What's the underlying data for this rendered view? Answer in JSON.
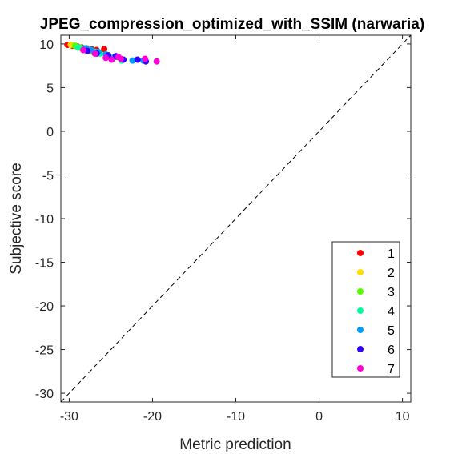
{
  "chart_data": {
    "type": "scatter",
    "title": "JPEG_compression_optimized_with_SSIM (narwaria)",
    "xlabel": "Metric prediction",
    "ylabel": "Subjective score",
    "xlim": [
      -31,
      11
    ],
    "ylim": [
      -31,
      11
    ],
    "xticks": [
      -30,
      -20,
      -10,
      0,
      10
    ],
    "yticks": [
      10,
      5,
      0,
      -5,
      -10,
      -15,
      -20,
      -25,
      -30
    ],
    "identity_line": true,
    "grid": false,
    "legend_position": "bottom-right",
    "series": [
      {
        "name": "1",
        "color": "#ff0000",
        "x": [
          -30.2,
          -29.6,
          -29.0,
          -28.5,
          -27.9,
          -27.3,
          -26.7,
          -25.8
        ],
        "y": [
          9.9,
          9.8,
          9.7,
          9.6,
          9.5,
          9.4,
          9.3,
          9.4
        ]
      },
      {
        "name": "2",
        "color": "#ffdd00",
        "x": [
          -29.8,
          -29.3,
          -28.9,
          -28.6,
          -28.1
        ],
        "y": [
          9.9,
          9.8,
          9.6,
          9.5,
          9.3
        ]
      },
      {
        "name": "3",
        "color": "#55ff00",
        "x": [
          -29.3,
          -28.7,
          -28.2,
          -27.7,
          -27.2
        ],
        "y": [
          9.8,
          9.6,
          9.5,
          9.3,
          9.1
        ]
      },
      {
        "name": "4",
        "color": "#00ff99",
        "x": [
          -28.9,
          -28.2,
          -27.5,
          -26.9,
          -26.3,
          -24.6,
          -23.7
        ],
        "y": [
          9.6,
          9.5,
          9.3,
          9.1,
          8.9,
          8.5,
          8.1
        ]
      },
      {
        "name": "5",
        "color": "#0099ff",
        "x": [
          -28.0,
          -27.3,
          -26.5,
          -25.6,
          -24.5,
          -22.4,
          -21.1
        ],
        "y": [
          9.5,
          9.3,
          9.1,
          8.8,
          8.5,
          8.1,
          8.1
        ]
      },
      {
        "name": "6",
        "color": "#3300ff",
        "x": [
          -27.8,
          -26.7,
          -25.3,
          -24.4,
          -23.5,
          -21.8,
          -20.8
        ],
        "y": [
          9.2,
          8.9,
          8.7,
          8.6,
          8.2,
          8.2,
          8.0
        ]
      },
      {
        "name": "7",
        "color": "#ff00dd",
        "x": [
          -28.3,
          -26.9,
          -25.6,
          -24.9,
          -24.1,
          -23.8,
          -20.9,
          -19.5
        ],
        "y": [
          9.3,
          8.9,
          8.4,
          8.2,
          8.5,
          8.3,
          8.3,
          8.0
        ]
      }
    ]
  }
}
